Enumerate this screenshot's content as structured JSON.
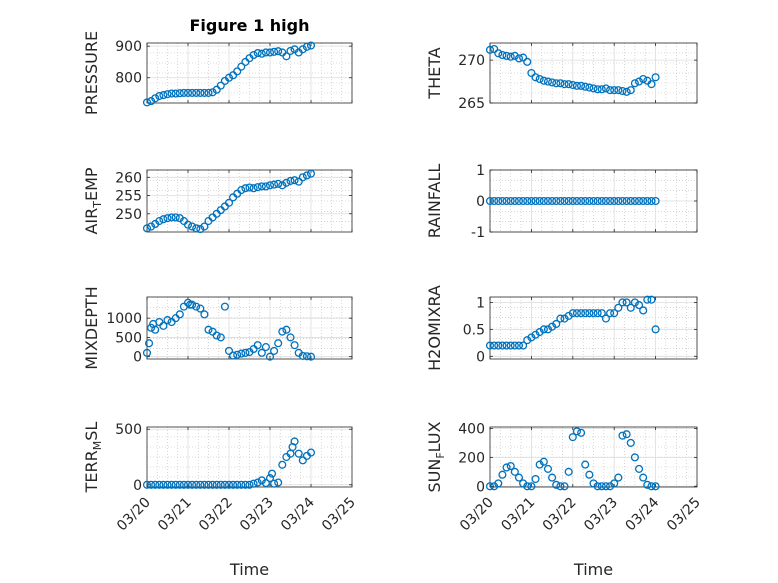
{
  "figure": {
    "title": "Figure 1 high",
    "marker_color": "#0072BD"
  },
  "chart_data": [
    {
      "type": "scatter",
      "ylabel": "PRESSURE",
      "xlabel": "",
      "xlim": [
        0,
        5
      ],
      "ylim": [
        720,
        910
      ],
      "yticks": [
        800,
        900
      ],
      "x": [
        0.0,
        0.1,
        0.2,
        0.3,
        0.4,
        0.5,
        0.6,
        0.7,
        0.8,
        0.9,
        1.0,
        1.1,
        1.2,
        1.3,
        1.4,
        1.5,
        1.6,
        1.7,
        1.8,
        1.9,
        2.0,
        2.1,
        2.2,
        2.3,
        2.4,
        2.5,
        2.6,
        2.7,
        2.8,
        2.9,
        3.0,
        3.1,
        3.2,
        3.3,
        3.4,
        3.5,
        3.6,
        3.7,
        3.8,
        3.9,
        4.0
      ],
      "y": [
        722,
        726,
        735,
        742,
        745,
        748,
        750,
        750,
        751,
        752,
        752,
        752,
        752,
        752,
        752,
        752,
        754,
        762,
        775,
        790,
        800,
        808,
        820,
        835,
        850,
        862,
        872,
        878,
        876,
        880,
        880,
        882,
        884,
        880,
        868,
        885,
        890,
        880,
        890,
        898,
        902
      ]
    },
    {
      "type": "scatter",
      "ylabel": "THETA",
      "xlabel": "",
      "xlim": [
        0,
        5
      ],
      "ylim": [
        265,
        272
      ],
      "yticks": [
        265,
        270
      ],
      "x": [
        0.0,
        0.1,
        0.2,
        0.3,
        0.4,
        0.5,
        0.6,
        0.7,
        0.8,
        0.9,
        1.0,
        1.1,
        1.2,
        1.3,
        1.4,
        1.5,
        1.6,
        1.7,
        1.8,
        1.9,
        2.0,
        2.1,
        2.2,
        2.3,
        2.4,
        2.5,
        2.6,
        2.7,
        2.8,
        2.9,
        3.0,
        3.1,
        3.2,
        3.3,
        3.4,
        3.5,
        3.6,
        3.7,
        3.8,
        3.9,
        4.0
      ],
      "y": [
        271.2,
        271.3,
        270.8,
        270.6,
        270.5,
        270.4,
        270.5,
        270.2,
        270.3,
        269.8,
        268.5,
        268.0,
        267.8,
        267.6,
        267.5,
        267.4,
        267.3,
        267.3,
        267.2,
        267.2,
        267.1,
        267.0,
        267.0,
        266.9,
        266.8,
        266.7,
        266.6,
        266.6,
        266.7,
        266.5,
        266.5,
        266.5,
        266.4,
        266.3,
        266.5,
        267.3,
        267.5,
        267.8,
        267.6,
        267.2,
        268.0
      ]
    },
    {
      "type": "scatter",
      "ylabel": "AIR_TEMP",
      "xlabel": "",
      "xlim": [
        0,
        5
      ],
      "ylim": [
        245,
        262
      ],
      "yticks": [
        250,
        255,
        260
      ],
      "x": [
        0.0,
        0.1,
        0.2,
        0.3,
        0.4,
        0.5,
        0.6,
        0.7,
        0.8,
        0.9,
        1.0,
        1.1,
        1.2,
        1.3,
        1.4,
        1.5,
        1.6,
        1.7,
        1.8,
        1.9,
        2.0,
        2.1,
        2.2,
        2.3,
        2.4,
        2.5,
        2.6,
        2.7,
        2.8,
        2.9,
        3.0,
        3.1,
        3.2,
        3.3,
        3.4,
        3.5,
        3.6,
        3.7,
        3.8,
        3.9,
        4.0
      ],
      "y": [
        246.0,
        246.5,
        247.2,
        248.0,
        248.5,
        248.8,
        249.0,
        249.0,
        248.8,
        248.0,
        247.0,
        246.5,
        246.0,
        245.8,
        246.5,
        248.0,
        249.0,
        250.0,
        251.0,
        252.0,
        253.0,
        254.5,
        255.5,
        256.5,
        257.0,
        257.2,
        257.0,
        257.3,
        257.5,
        257.5,
        257.8,
        258.0,
        258.2,
        257.8,
        258.5,
        259.0,
        259.2,
        258.8,
        260.0,
        260.5,
        261.0
      ]
    },
    {
      "type": "scatter",
      "ylabel": "RAINFALL",
      "xlabel": "",
      "xlim": [
        0,
        5
      ],
      "ylim": [
        -1,
        1
      ],
      "yticks": [
        -1,
        0,
        1
      ],
      "x": [
        0.0,
        0.1,
        0.2,
        0.3,
        0.4,
        0.5,
        0.6,
        0.7,
        0.8,
        0.9,
        1.0,
        1.1,
        1.2,
        1.3,
        1.4,
        1.5,
        1.6,
        1.7,
        1.8,
        1.9,
        2.0,
        2.1,
        2.2,
        2.3,
        2.4,
        2.5,
        2.6,
        2.7,
        2.8,
        2.9,
        3.0,
        3.1,
        3.2,
        3.3,
        3.4,
        3.5,
        3.6,
        3.7,
        3.8,
        3.9,
        4.0
      ],
      "y": [
        0,
        0,
        0,
        0,
        0,
        0,
        0,
        0,
        0,
        0,
        0,
        0,
        0,
        0,
        0,
        0,
        0,
        0,
        0,
        0,
        0,
        0,
        0,
        0,
        0,
        0,
        0,
        0,
        0,
        0,
        0,
        0,
        0,
        0,
        0,
        0,
        0,
        0,
        0,
        0,
        0
      ]
    },
    {
      "type": "scatter",
      "ylabel": "MIXDEPTH",
      "xlabel": "",
      "xlim": [
        0,
        5
      ],
      "ylim": [
        -60,
        1550
      ],
      "yticks": [
        0,
        500,
        1000
      ],
      "x": [
        0.0,
        0.05,
        0.1,
        0.15,
        0.2,
        0.3,
        0.4,
        0.5,
        0.6,
        0.7,
        0.8,
        0.9,
        1.0,
        1.05,
        1.1,
        1.2,
        1.3,
        1.4,
        1.5,
        1.6,
        1.7,
        1.8,
        1.9,
        2.0,
        2.1,
        2.2,
        2.3,
        2.4,
        2.5,
        2.6,
        2.7,
        2.8,
        2.9,
        3.0,
        3.1,
        3.2,
        3.3,
        3.4,
        3.5,
        3.6,
        3.7,
        3.8,
        3.9,
        4.0
      ],
      "y": [
        100,
        350,
        750,
        850,
        700,
        900,
        800,
        950,
        900,
        1000,
        1100,
        1300,
        1400,
        1350,
        1350,
        1300,
        1250,
        1100,
        700,
        650,
        550,
        500,
        1300,
        150,
        30,
        50,
        80,
        100,
        120,
        200,
        300,
        100,
        250,
        0,
        150,
        350,
        650,
        700,
        500,
        300,
        100,
        20,
        10,
        0
      ]
    },
    {
      "type": "scatter",
      "ylabel": "H2OMIXRA",
      "xlabel": "",
      "xlim": [
        0,
        5
      ],
      "ylim": [
        -0.05,
        1.1
      ],
      "yticks": [
        0,
        0.5,
        1
      ],
      "x": [
        0.0,
        0.1,
        0.2,
        0.3,
        0.4,
        0.5,
        0.6,
        0.7,
        0.8,
        0.9,
        1.0,
        1.1,
        1.2,
        1.3,
        1.4,
        1.5,
        1.6,
        1.7,
        1.8,
        1.9,
        2.0,
        2.1,
        2.2,
        2.3,
        2.4,
        2.5,
        2.6,
        2.7,
        2.8,
        2.9,
        3.0,
        3.1,
        3.2,
        3.3,
        3.4,
        3.5,
        3.6,
        3.7,
        3.8,
        3.9,
        4.0
      ],
      "y": [
        0.2,
        0.2,
        0.2,
        0.2,
        0.2,
        0.2,
        0.2,
        0.2,
        0.2,
        0.3,
        0.35,
        0.4,
        0.45,
        0.5,
        0.5,
        0.55,
        0.6,
        0.7,
        0.7,
        0.75,
        0.8,
        0.8,
        0.8,
        0.8,
        0.8,
        0.8,
        0.8,
        0.8,
        0.7,
        0.8,
        0.8,
        0.9,
        1.0,
        1.0,
        0.9,
        1.0,
        0.95,
        0.85,
        1.05,
        1.05,
        0.5
      ]
    },
    {
      "type": "scatter",
      "ylabel": "TERR_MSL",
      "xlabel": "Time",
      "xlim": [
        0,
        5
      ],
      "ylim": [
        -20,
        520
      ],
      "yticks": [
        0,
        500
      ],
      "xticks": [
        0,
        1,
        2,
        3,
        4,
        5
      ],
      "xticklabels": [
        "03/20",
        "03/21",
        "03/22",
        "03/23",
        "03/24",
        "03/25"
      ],
      "x": [
        0.0,
        0.1,
        0.2,
        0.3,
        0.4,
        0.5,
        0.6,
        0.7,
        0.8,
        0.9,
        1.0,
        1.1,
        1.2,
        1.3,
        1.4,
        1.5,
        1.6,
        1.7,
        1.8,
        1.9,
        2.0,
        2.1,
        2.2,
        2.3,
        2.4,
        2.5,
        2.6,
        2.7,
        2.8,
        2.9,
        3.0,
        3.05,
        3.1,
        3.2,
        3.3,
        3.4,
        3.5,
        3.55,
        3.6,
        3.7,
        3.8,
        3.9,
        4.0
      ],
      "y": [
        0,
        0,
        0,
        0,
        0,
        0,
        0,
        0,
        0,
        0,
        0,
        0,
        0,
        0,
        0,
        0,
        0,
        0,
        0,
        0,
        0,
        0,
        0,
        0,
        0,
        0,
        10,
        20,
        40,
        15,
        60,
        100,
        10,
        20,
        180,
        250,
        280,
        340,
        390,
        280,
        220,
        260,
        290
      ]
    },
    {
      "type": "scatter",
      "ylabel": "SUN_FLUX",
      "xlabel": "Time",
      "xlim": [
        0,
        5
      ],
      "ylim": [
        -5,
        410
      ],
      "yticks": [
        0,
        200,
        400
      ],
      "xticks": [
        0,
        1,
        2,
        3,
        4,
        5
      ],
      "xticklabels": [
        "03/20",
        "03/21",
        "03/22",
        "03/23",
        "03/24",
        "03/25"
      ],
      "x": [
        0.0,
        0.1,
        0.2,
        0.3,
        0.4,
        0.5,
        0.6,
        0.7,
        0.8,
        0.9,
        1.0,
        1.1,
        1.2,
        1.3,
        1.4,
        1.5,
        1.6,
        1.7,
        1.8,
        1.9,
        2.0,
        2.1,
        2.2,
        2.3,
        2.4,
        2.5,
        2.6,
        2.7,
        2.8,
        2.9,
        3.0,
        3.1,
        3.2,
        3.3,
        3.4,
        3.5,
        3.6,
        3.7,
        3.8,
        3.9,
        4.0
      ],
      "y": [
        0,
        0,
        20,
        80,
        130,
        140,
        100,
        60,
        20,
        0,
        0,
        50,
        150,
        170,
        120,
        60,
        10,
        0,
        0,
        100,
        340,
        380,
        370,
        150,
        80,
        20,
        0,
        0,
        0,
        0,
        20,
        60,
        350,
        360,
        300,
        200,
        120,
        60,
        10,
        0,
        0
      ]
    }
  ]
}
